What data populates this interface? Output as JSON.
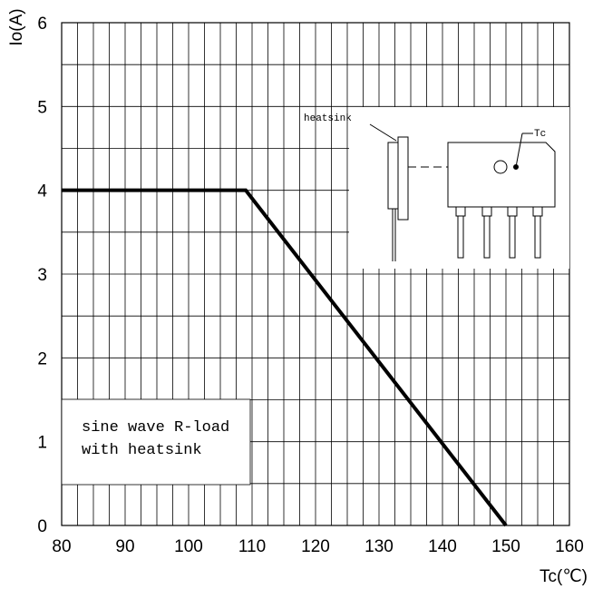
{
  "chart_data": {
    "type": "line",
    "xlabel": "Tc(℃)",
    "ylabel": "Io(A)",
    "xlim": [
      80,
      160
    ],
    "ylim": [
      0,
      6
    ],
    "x_ticks": [
      80,
      90,
      100,
      110,
      120,
      130,
      140,
      150,
      160
    ],
    "y_ticks": [
      0,
      1,
      2,
      3,
      4,
      5,
      6
    ],
    "grid": true,
    "series": [
      {
        "x": [
          80,
          109,
          150
        ],
        "y": [
          4,
          4,
          0
        ]
      }
    ],
    "annotations": {
      "condition_line1": "sine wave R-load",
      "condition_line2": "with heatsink",
      "heatsink_label": "heatsink",
      "tc_label": "Tc"
    }
  }
}
